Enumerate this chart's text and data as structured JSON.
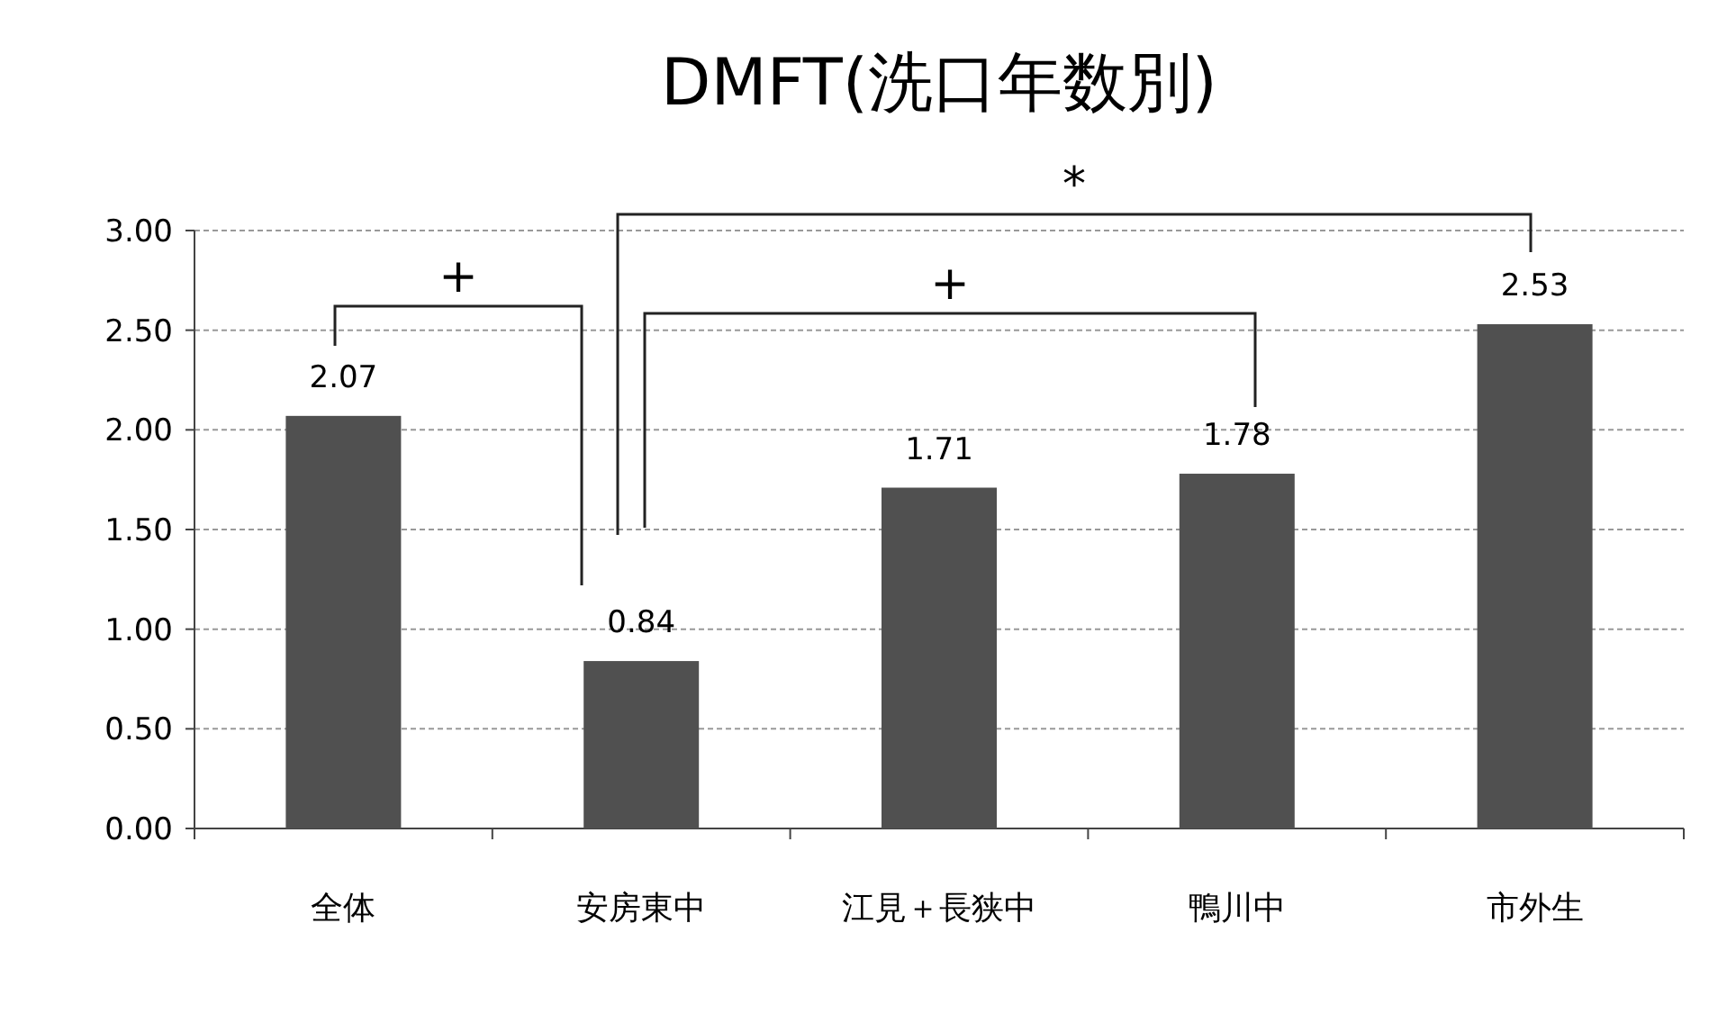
{
  "chart_data": {
    "type": "bar",
    "title": "DMFT(洗口年数別)",
    "categories": [
      "全体",
      "安房東中",
      "江見＋長狭中",
      "鴨川中",
      "市外生"
    ],
    "values": [
      2.07,
      0.84,
      1.71,
      1.78,
      2.53
    ],
    "color": "#505050",
    "ylim": [
      0,
      3
    ],
    "yticks": [
      {
        "value": 0,
        "label": "0.00"
      },
      {
        "value": 0.5,
        "label": "0.50"
      },
      {
        "value": 1,
        "label": "1.00"
      },
      {
        "value": 1.5,
        "label": "1.50"
      },
      {
        "value": 2,
        "label": "2.00"
      },
      {
        "value": 2.5,
        "label": "2.50"
      },
      {
        "value": 3,
        "label": "3.00"
      }
    ],
    "grid": "y",
    "data_labels": true,
    "annotations": [
      "+",
      "+",
      "*"
    ]
  }
}
